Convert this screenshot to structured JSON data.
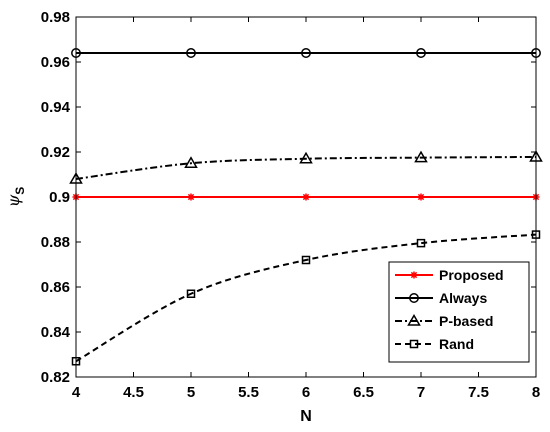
{
  "chart_data": {
    "type": "line",
    "xlabel": "N",
    "ylabel_main": "ψ",
    "ylabel_sub": "S",
    "xlim": [
      4,
      8
    ],
    "ylim": [
      0.82,
      0.98
    ],
    "xticks": [
      "4",
      "4.5",
      "5",
      "5.5",
      "6",
      "6.5",
      "7",
      "7.5",
      "8"
    ],
    "yticks": [
      "0.82",
      "0.84",
      "0.86",
      "0.88",
      "0.9",
      "0.92",
      "0.94",
      "0.96",
      "0.98"
    ],
    "grid": false,
    "legend_position": "bottom-right",
    "x": [
      4,
      5,
      6,
      7,
      8
    ],
    "series": [
      {
        "name": "Proposed",
        "values": [
          0.9,
          0.9,
          0.9,
          0.9,
          0.9
        ],
        "color": "#ff0000",
        "line": "solid",
        "marker": "asterisk"
      },
      {
        "name": "Always",
        "values": [
          0.964,
          0.964,
          0.964,
          0.964,
          0.964
        ],
        "color": "#000000",
        "line": "solid",
        "marker": "circle"
      },
      {
        "name": "P-based",
        "values": [
          0.908,
          0.915,
          0.917,
          0.9175,
          0.9178
        ],
        "color": "#000000",
        "line": "dashdot",
        "marker": "triangle"
      },
      {
        "name": "Rand",
        "values": [
          0.827,
          0.857,
          0.872,
          0.8795,
          0.8833
        ],
        "color": "#000000",
        "line": "dashed",
        "marker": "square"
      }
    ]
  }
}
